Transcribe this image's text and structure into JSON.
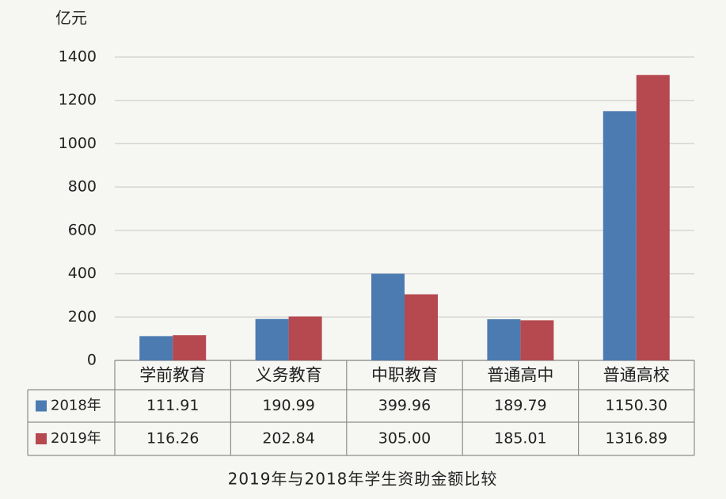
{
  "chart_data": {
    "type": "bar",
    "title": "2019年与2018年学生资助金额比较",
    "y_label": "亿元",
    "categories": [
      "学前教育",
      "义务教育",
      "中职教育",
      "普通高中",
      "普通高校"
    ],
    "series": [
      {
        "name": "2018年",
        "color": "#4b7bb1",
        "values": [
          111.91,
          190.99,
          399.96,
          189.79,
          1150.3
        ],
        "value_labels": [
          "111.91",
          "190.99",
          "399.96",
          "189.79",
          "1150.30"
        ]
      },
      {
        "name": "2019年",
        "color": "#b5494f",
        "values": [
          116.26,
          202.84,
          305,
          185.01,
          1316.89
        ],
        "value_labels": [
          "116.26",
          "202.84",
          "305.00",
          "185.01",
          "1316.89"
        ]
      }
    ],
    "ylim": [
      0,
      1400
    ],
    "yticks": [
      0,
      200,
      400,
      600,
      800,
      1000,
      1200,
      1400
    ],
    "grid": true
  }
}
